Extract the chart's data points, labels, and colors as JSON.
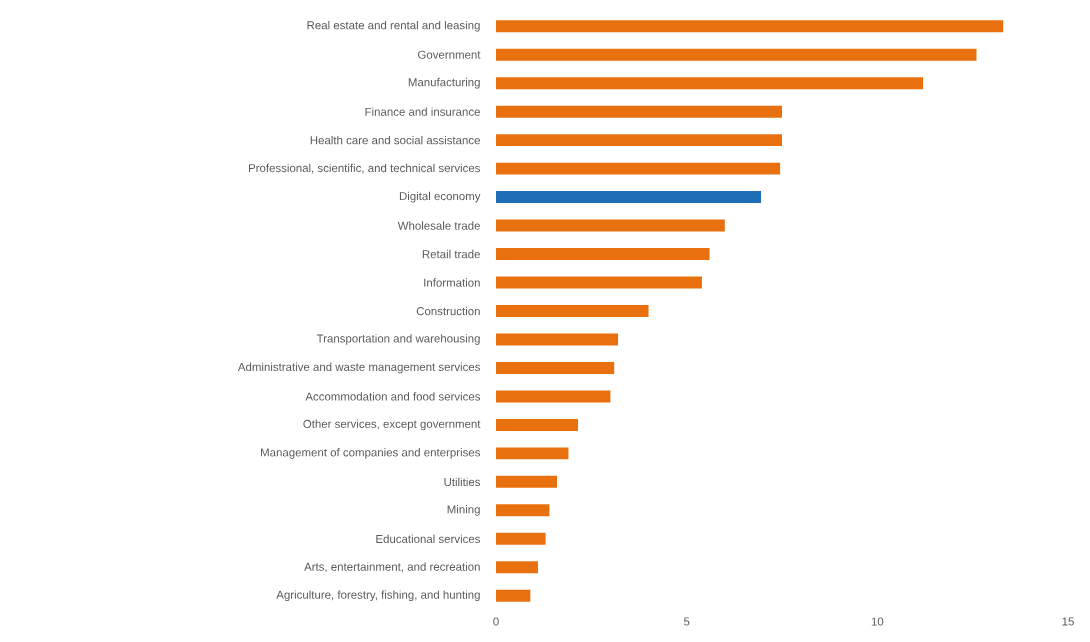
{
  "chart_data": {
    "type": "bar",
    "orientation": "horizontal",
    "categories": [
      "Real estate and rental and leasing",
      "Government",
      "Manufacturing",
      "Finance and insurance",
      "Health care and social assistance",
      "Professional, scientific, and technical services",
      "Digital economy",
      "Wholesale trade",
      "Retail trade",
      "Information",
      "Construction",
      "Transportation and warehousing",
      "Administrative and waste management services",
      "Accommodation and food services",
      "Other services, except government",
      "Management of companies and enterprises",
      "Utilities",
      "Mining",
      "Educational services",
      "Arts, entertainment, and recreation",
      "Agriculture, forestry, fishing, and hunting"
    ],
    "values": [
      13.3,
      12.6,
      11.2,
      7.5,
      7.5,
      7.45,
      6.95,
      6.0,
      5.6,
      5.4,
      4.0,
      3.2,
      3.1,
      3.0,
      2.15,
      1.9,
      1.6,
      1.4,
      1.3,
      1.1,
      0.9
    ],
    "colors": [
      "#e8700f",
      "#e8700f",
      "#e8700f",
      "#e8700f",
      "#e8700f",
      "#e8700f",
      "#1f6db5",
      "#e8700f",
      "#e8700f",
      "#e8700f",
      "#e8700f",
      "#e8700f",
      "#e8700f",
      "#e8700f",
      "#e8700f",
      "#e8700f",
      "#e8700f",
      "#e8700f",
      "#e8700f",
      "#e8700f",
      "#e8700f"
    ],
    "xlim": [
      0,
      15
    ],
    "xticks": [
      0,
      5,
      10,
      15
    ]
  }
}
